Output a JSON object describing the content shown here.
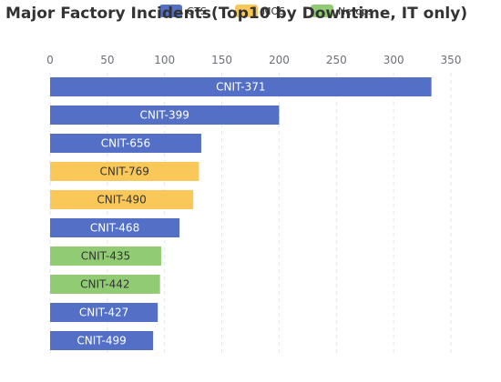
{
  "chart_data": {
    "type": "bar",
    "orientation": "horizontal",
    "title": "Major Factory Incidents(Top10 by Downtime, IT only)",
    "xlabel": "",
    "ylabel": "",
    "xlim": [
      0,
      350
    ],
    "x_ticks": [
      0,
      50,
      100,
      150,
      200,
      250,
      300,
      350
    ],
    "grid": true,
    "legend_position": "top",
    "legend": [
      {
        "name": "GTS",
        "color": "#5470c6"
      },
      {
        "name": "MOS",
        "color": "#fac858"
      },
      {
        "name": "Netops",
        "color": "#91cc75"
      }
    ],
    "bars": [
      {
        "label": "CNIT-371",
        "value": 333,
        "group": "GTS"
      },
      {
        "label": "CNIT-399",
        "value": 200,
        "group": "GTS"
      },
      {
        "label": "CNIT-656",
        "value": 132,
        "group": "GTS"
      },
      {
        "label": "CNIT-769",
        "value": 130,
        "group": "MOS"
      },
      {
        "label": "CNIT-490",
        "value": 125,
        "group": "MOS"
      },
      {
        "label": "CNIT-468",
        "value": 113,
        "group": "GTS"
      },
      {
        "label": "CNIT-435",
        "value": 97,
        "group": "Netops"
      },
      {
        "label": "CNIT-442",
        "value": 96,
        "group": "Netops"
      },
      {
        "label": "CNIT-427",
        "value": 94,
        "group": "GTS"
      },
      {
        "label": "CNIT-499",
        "value": 90,
        "group": "GTS"
      }
    ]
  }
}
